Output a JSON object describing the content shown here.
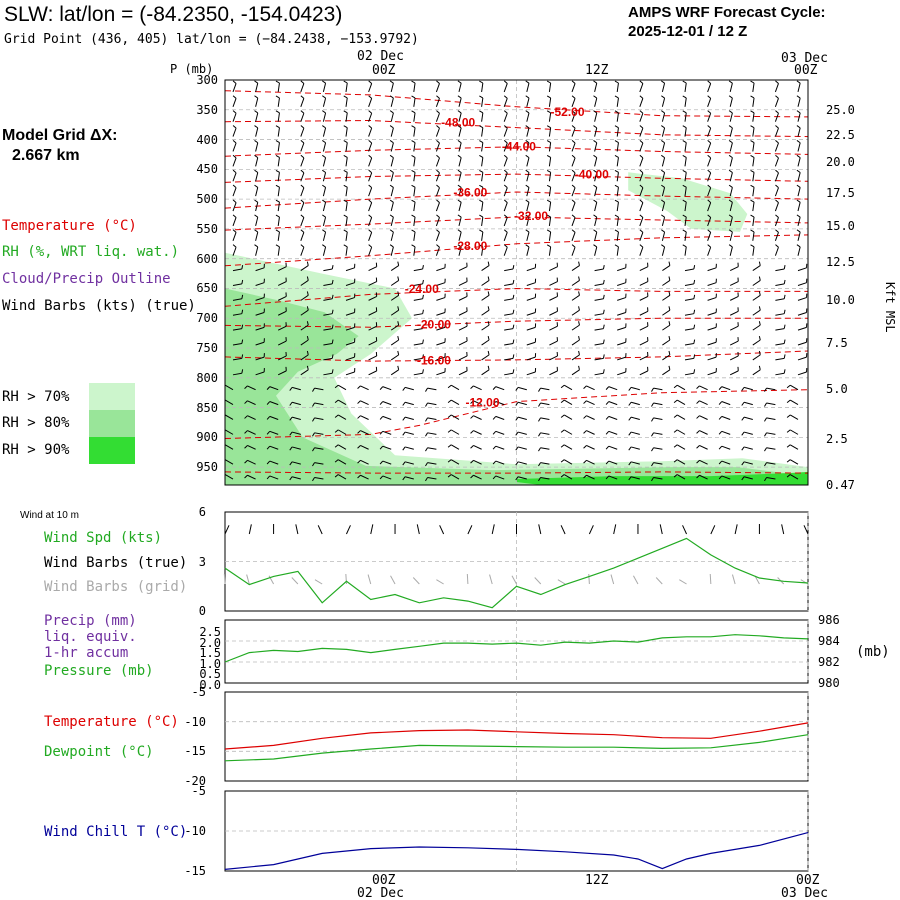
{
  "header": {
    "title": "SLW:  lat/lon = (-84.2350, -154.0423)",
    "subtitle": "Grid Point (436, 405) lat/lon = (−84.2438, −153.9792)",
    "cycle_line1": "AMPS WRF Forecast Cycle:",
    "cycle_line2": "2025-12-01 / 12  Z"
  },
  "left_panel": {
    "model_grid_line1": "Model Grid ΔX:",
    "model_grid_line2": "2.667 km",
    "legend_temperature": "Temperature (°C)",
    "legend_rh": "RH (%, WRT liq. wat.)",
    "legend_cloud": "Cloud/Precip Outline",
    "legend_wind": "Wind Barbs (kts) (true)",
    "rh70": "RH > 70%",
    "rh80": "RH > 80%",
    "rh90": "RH > 90%",
    "colors": {
      "temperature": "#dd0000",
      "rh": "#22aa22",
      "cloud": "#7030a0",
      "rh70": "#ccf5cc",
      "rh80": "#99e599",
      "rh90": "#33dd33"
    }
  },
  "time_axis": {
    "top_date_left": "02 Dec",
    "top_date_right": "03 Dec",
    "top_00z": "00Z",
    "top_12z": "12Z",
    "top_00z_end": "00Z",
    "bottom_00z": "00Z",
    "bottom_12z": "12Z",
    "bottom_00z_end": "00Z",
    "bottom_date_left": "02 Dec",
    "bottom_date_right": "03 Dec"
  },
  "chart_data": [
    {
      "name": "cross-section",
      "type": "line",
      "pressure_axis_label": "P (mb)",
      "pressure_ticks": [
        "300",
        "350",
        "400",
        "450",
        "500",
        "550",
        "600",
        "650",
        "700",
        "750",
        "800",
        "850",
        "900",
        "950"
      ],
      "height_axis_label": "Kft MSL",
      "height_ticks": [
        "25.0",
        "22.5",
        "20.0",
        "17.5",
        "15.0",
        "12.5",
        "10.0",
        "7.5",
        "5.0",
        "2.5",
        "0.47"
      ],
      "ylim_mb": [
        300,
        980
      ],
      "xlim_hours": [
        12,
        36
      ],
      "isotherms": [
        {
          "label": "-52.00",
          "label_x": 26.1,
          "label_p": 355,
          "x": [
            12,
            18,
            24,
            30,
            36
          ],
          "p": [
            318,
            325,
            345,
            360,
            362
          ]
        },
        {
          "label": "-48.00",
          "label_x": 21.6,
          "label_p": 373,
          "x": [
            12,
            18,
            24,
            30,
            36
          ],
          "p": [
            370,
            368,
            380,
            392,
            395
          ]
        },
        {
          "label": "-44.00",
          "label_x": 24.1,
          "label_p": 413,
          "x": [
            12,
            18,
            24,
            30,
            36
          ],
          "p": [
            428,
            418,
            412,
            420,
            425
          ]
        },
        {
          "label": "-40.00",
          "label_x": 27.1,
          "label_p": 460,
          "x": [
            12,
            18,
            24,
            30,
            36
          ],
          "p": [
            472,
            462,
            458,
            465,
            470
          ]
        },
        {
          "label": "-36.00",
          "label_x": 22.1,
          "label_p": 490,
          "x": [
            12,
            18,
            24,
            30,
            36
          ],
          "p": [
            515,
            500,
            488,
            495,
            500
          ]
        },
        {
          "label": "-32.00",
          "label_x": 24.6,
          "label_p": 530,
          "x": [
            12,
            18,
            24,
            30,
            36
          ],
          "p": [
            552,
            542,
            530,
            535,
            540
          ]
        },
        {
          "label": "-28.00",
          "label_x": 22.1,
          "label_p": 580,
          "x": [
            12,
            18,
            24,
            30,
            36
          ],
          "p": [
            612,
            595,
            575,
            565,
            560
          ]
        },
        {
          "label": "-24.00",
          "label_x": 20.1,
          "label_p": 652,
          "x": [
            12,
            18,
            24,
            30,
            36
          ],
          "p": [
            680,
            660,
            650,
            655,
            655
          ]
        },
        {
          "label": "-20.00",
          "label_x": 20.6,
          "label_p": 712,
          "x": [
            12,
            18,
            24,
            30,
            36
          ],
          "p": [
            712,
            715,
            705,
            700,
            700
          ]
        },
        {
          "label": "-16.00",
          "label_x": 20.6,
          "label_p": 772,
          "x": [
            12,
            18,
            24,
            30,
            36
          ],
          "p": [
            765,
            772,
            770,
            765,
            755
          ]
        },
        {
          "label": "-12.00",
          "label_x": 22.6,
          "label_p": 843,
          "x": [
            12,
            18,
            20,
            24,
            30,
            36
          ],
          "p": [
            902,
            895,
            880,
            840,
            825,
            820
          ]
        },
        {
          "label": "",
          "label_x": 0,
          "label_p": 0,
          "x": [
            12,
            18,
            24,
            30,
            36
          ],
          "p": [
            958,
            960,
            960,
            958,
            960
          ]
        }
      ],
      "rh_regions": [
        {
          "level": "rh70",
          "x": [
            12,
            16,
            19,
            19.7,
            18,
            16.5,
            17.2,
            19,
            24,
            30,
            33.3,
            36,
            36,
            12
          ],
          "p": [
            590,
            625,
            650,
            700,
            760,
            800,
            860,
            930,
            945,
            940,
            935,
            950,
            980,
            980
          ]
        },
        {
          "level": "rh70",
          "x": [
            28.6,
            30.8,
            32.8,
            33.5,
            33.2,
            31.2,
            30.2,
            28.6
          ],
          "p": [
            455,
            465,
            490,
            525,
            555,
            550,
            520,
            485
          ]
        },
        {
          "level": "rh80",
          "x": [
            12,
            14.2,
            16.1,
            17.5,
            16.6,
            15,
            14.1,
            15.2,
            17.8,
            23,
            30.4,
            33.1,
            36,
            36,
            12
          ],
          "p": [
            650,
            670,
            690,
            730,
            760,
            790,
            830,
            900,
            948,
            955,
            950,
            950,
            965,
            980,
            980
          ]
        },
        {
          "level": "rh90",
          "x": [
            24,
            28,
            32,
            35.2,
            36,
            36,
            25,
            24
          ],
          "p": [
            970,
            965,
            965,
            960,
            958,
            980,
            980,
            975
          ]
        }
      ]
    },
    {
      "name": "wind-10m",
      "type": "line",
      "title": "Wind at 10 m",
      "series_label_spd": "Wind Spd (kts)",
      "series_label_true": "Wind Barbs (true)",
      "series_label_grid": "Wind Barbs (grid)",
      "ylim": [
        0,
        6
      ],
      "yticks": [
        "6",
        "3",
        "0"
      ],
      "x": [
        12,
        13,
        14,
        15,
        16,
        17,
        18,
        19,
        20,
        21,
        22,
        23,
        24,
        25,
        26,
        27,
        28,
        29,
        30,
        31,
        32,
        33,
        34,
        35,
        36
      ],
      "speed_kts": [
        2.6,
        1.6,
        2.1,
        2.4,
        0.5,
        1.8,
        0.7,
        1.0,
        0.5,
        0.8,
        0.6,
        0.2,
        1.5,
        1.0,
        1.6,
        2.1,
        2.6,
        3.2,
        3.8,
        4.4,
        3.4,
        2.6,
        2.0,
        1.8,
        1.7
      ],
      "colors": {
        "speed": "#22aa22",
        "true": "#000000",
        "grid": "#aaaaaa"
      }
    },
    {
      "name": "pressure",
      "type": "line",
      "precip_label_1": "Precip (mm)",
      "precip_label_2": "liq. equiv.",
      "precip_label_3": "1-hr accum",
      "pressure_label": "Pressure (mb)",
      "unit_label": "(mb)",
      "precip_ticks": [
        "2.5",
        "2.0",
        "1.5",
        "1.0",
        "0.5",
        "0.0"
      ],
      "pressure_ticks": [
        "986",
        "984",
        "982",
        "980"
      ],
      "ylim_mb": [
        980,
        986
      ],
      "x": [
        12,
        13,
        14,
        15,
        16,
        17,
        18,
        19,
        20,
        21,
        22,
        23,
        24,
        25,
        26,
        27,
        28,
        29,
        30,
        31,
        32,
        33,
        34,
        35,
        36
      ],
      "pressure_mb": [
        982.0,
        982.9,
        983.1,
        983.0,
        983.3,
        983.2,
        982.9,
        983.2,
        983.5,
        983.8,
        983.8,
        983.7,
        983.8,
        983.6,
        983.9,
        983.8,
        984.0,
        983.9,
        984.3,
        984.4,
        984.4,
        984.6,
        984.5,
        984.3,
        984.2
      ],
      "colors": {
        "precip": "#7030a0",
        "pressure": "#22aa22"
      }
    },
    {
      "name": "temperature",
      "type": "line",
      "temp_label": "Temperature (°C)",
      "dew_label": "Dewpoint (°C)",
      "ylim": [
        -20,
        -5
      ],
      "yticks": [
        "-5",
        "-10",
        "-15",
        "-20"
      ],
      "x": [
        12,
        14,
        16,
        18,
        20,
        22,
        24,
        26,
        28,
        30,
        32,
        34,
        36
      ],
      "temperature_c": [
        -14.6,
        -14.0,
        -12.8,
        -11.9,
        -11.5,
        -11.4,
        -11.7,
        -12.0,
        -12.2,
        -12.7,
        -12.8,
        -11.6,
        -10.2
      ],
      "dewpoint_c": [
        -16.6,
        -16.3,
        -15.3,
        -14.6,
        -14.0,
        -14.1,
        -14.2,
        -14.3,
        -14.3,
        -14.5,
        -14.4,
        -13.5,
        -12.2
      ],
      "colors": {
        "temperature": "#dd0000",
        "dewpoint": "#22aa22"
      }
    },
    {
      "name": "wind-chill",
      "type": "line",
      "label": "Wind Chill T (°C)",
      "ylim": [
        -15,
        -5
      ],
      "yticks": [
        "-5",
        "-10",
        "-15"
      ],
      "x": [
        12,
        14,
        16,
        18,
        20,
        22,
        24,
        26,
        28,
        29,
        30,
        31,
        32,
        34,
        36
      ],
      "wind_chill_c": [
        -14.8,
        -14.2,
        -12.8,
        -12.2,
        -12.0,
        -12.1,
        -12.3,
        -12.6,
        -13.0,
        -13.5,
        -14.7,
        -13.5,
        -12.8,
        -11.8,
        -10.2
      ],
      "colors": {
        "wind_chill": "#000099"
      }
    }
  ]
}
